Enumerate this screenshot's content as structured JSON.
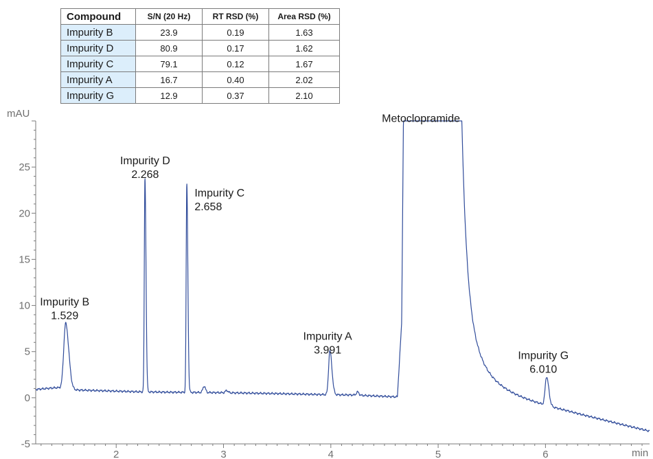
{
  "table": {
    "headers": [
      "Compound",
      "S/N (20 Hz)",
      "RT RSD (%)",
      "Area RSD (%)"
    ],
    "rows": [
      [
        "Impurity B",
        "23.9",
        "0.19",
        "1.63"
      ],
      [
        "Impurity D",
        "80.9",
        "0.17",
        "1.62"
      ],
      [
        "Impurity C",
        "79.1",
        "0.12",
        "1.67"
      ],
      [
        "Impurity A",
        "16.7",
        "0.40",
        "2.02"
      ],
      [
        "Impurity G",
        "12.9",
        "0.37",
        "2.10"
      ]
    ]
  },
  "chart_data": {
    "type": "line",
    "title": "",
    "xlabel": "min",
    "ylabel": "mAU",
    "xlim": [
      1.25,
      6.97
    ],
    "ylim": [
      -5,
      30
    ],
    "x_ticks": [
      2,
      3,
      4,
      5,
      6
    ],
    "y_ticks": [
      -5,
      0,
      5,
      10,
      15,
      20,
      25
    ],
    "grid": false,
    "line_color": "#2f4b9a",
    "baseline": [
      [
        1.25,
        0.9
      ],
      [
        1.45,
        1.1
      ],
      [
        1.6,
        0.85
      ],
      [
        2.2,
        0.65
      ],
      [
        2.5,
        0.6
      ],
      [
        3.0,
        0.55
      ],
      [
        3.5,
        0.45
      ],
      [
        3.9,
        0.35
      ],
      [
        4.2,
        0.3
      ],
      [
        4.6,
        0.1
      ],
      [
        5.3,
        0.0
      ],
      [
        5.6,
        -0.6
      ],
      [
        5.9,
        -1.2
      ],
      [
        6.2,
        -1.8
      ],
      [
        6.5,
        -2.5
      ],
      [
        6.97,
        -3.7
      ]
    ],
    "peaks": [
      {
        "name": "Impurity B",
        "rt": 1.529,
        "label": "1.529",
        "height": 7.1,
        "sigma": 0.018
      },
      {
        "name": "Impurity D",
        "rt": 2.268,
        "label": "2.268",
        "height": 23.2,
        "sigma": 0.006
      },
      {
        "name": "Impurity C",
        "rt": 2.658,
        "label": "2.658",
        "height": 22.5,
        "sigma": 0.006
      },
      {
        "name": "Impurity A",
        "rt": 3.991,
        "label": "3.991",
        "height": 4.75,
        "sigma": 0.012
      },
      {
        "name": "Metoclopramide",
        "rt": 4.93,
        "label": "",
        "height": 30,
        "sigma": 0.1
      },
      {
        "name": "Impurity G",
        "rt": 6.01,
        "label": "6.010",
        "height": 3.1,
        "sigma": 0.013
      }
    ],
    "minor_peaks": [
      [
        2.82,
        0.7
      ],
      [
        3.03,
        0.25
      ],
      [
        4.25,
        0.35
      ]
    ],
    "annotations": [
      {
        "name": "Impurity B",
        "rt": "1.529",
        "x": 1.52,
        "y": 10.0
      },
      {
        "name": "Impurity D",
        "rt": "2.268",
        "x": 2.27,
        "y": 25.3
      },
      {
        "name": "Impurity C",
        "rt": "2.658",
        "x": 2.94,
        "y": 21.8
      },
      {
        "name": "Impurity A",
        "rt": "3.991",
        "x": 3.97,
        "y": 6.3
      },
      {
        "name": "Metoclopramide",
        "rt": "",
        "x": 4.84,
        "y": 29.9
      },
      {
        "name": "Impurity G",
        "rt": "6.010",
        "x": 5.98,
        "y": 4.2
      }
    ]
  }
}
